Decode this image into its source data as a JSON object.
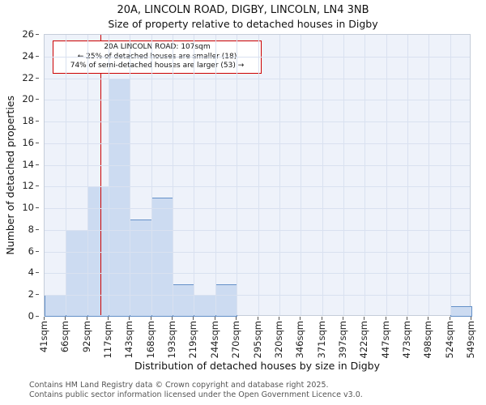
{
  "chart_data": {
    "type": "bar",
    "title": "20A, LINCOLN ROAD, DIGBY, LINCOLN, LN4 3NB",
    "subtitle": "Size of property relative to detached houses in Digby",
    "xlabel": "Distribution of detached houses by size in Digby",
    "ylabel": "Number of detached properties",
    "categories": [
      "41sqm",
      "66sqm",
      "92sqm",
      "117sqm",
      "143sqm",
      "168sqm",
      "193sqm",
      "219sqm",
      "244sqm",
      "270sqm",
      "295sqm",
      "320sqm",
      "346sqm",
      "371sqm",
      "397sqm",
      "422sqm",
      "447sqm",
      "473sqm",
      "498sqm",
      "524sqm",
      "549sqm"
    ],
    "values": [
      2,
      8,
      12,
      22,
      9,
      11,
      3,
      2,
      3,
      0,
      0,
      0,
      0,
      0,
      0,
      0,
      0,
      0,
      0,
      1
    ],
    "ylim": [
      0,
      26
    ],
    "y_tick_step": 2,
    "grid": true,
    "legend": "none",
    "marker": {
      "value": 107,
      "color": "#cc0000"
    },
    "bar_fill": "#ccdbf1",
    "bar_edge": "#6490c8"
  },
  "annotation": {
    "line1": "20A LINCOLN ROAD: 107sqm",
    "line2": "← 25% of detached houses are smaller (18)",
    "line3": "74% of semi-detached houses are larger (53) →"
  },
  "footer": {
    "line1": "Contains HM Land Registry data © Crown copyright and database right 2025.",
    "line2": "Contains public sector information licensed under the Open Government Licence v3.0."
  }
}
